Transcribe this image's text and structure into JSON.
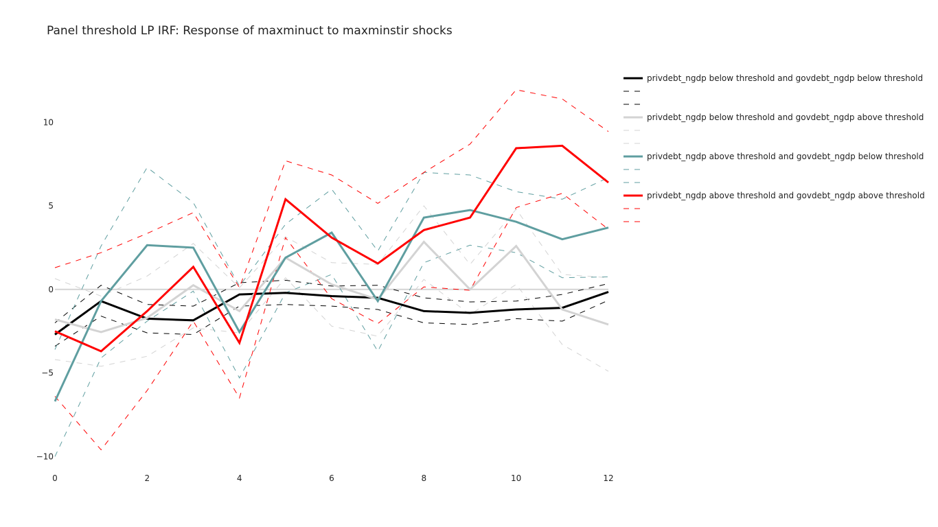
{
  "chart_data": {
    "type": "line",
    "title": "Panel threshold LP IRF: Response of maxminuct to maxminstir shocks",
    "xlabel": "",
    "ylabel": "",
    "x": [
      0,
      1,
      2,
      3,
      4,
      5,
      6,
      7,
      8,
      9,
      10,
      11,
      12
    ],
    "xlim": [
      0,
      12
    ],
    "ylim": [
      -10.4,
      12.6
    ],
    "xticks": [
      0,
      2,
      4,
      6,
      8,
      10,
      12
    ],
    "yticks": [
      -10,
      -5,
      0,
      5,
      10
    ],
    "ytick_labels": [
      "−10",
      "−5",
      "0",
      "5",
      "10"
    ],
    "grid": false,
    "zero_line": true,
    "legend_position": "right",
    "series": [
      {
        "name": "privdebt_ngdp below threshold and govdebt_ngdp below threshold",
        "role": "estimate",
        "color": "#000000",
        "dash": "solid",
        "values": [
          -2.7,
          -0.7,
          -1.75,
          -1.85,
          -0.3,
          -0.2,
          -0.4,
          -0.5,
          -1.3,
          -1.4,
          -1.2,
          -1.1,
          -0.15
        ]
      },
      {
        "name": "",
        "role": "upper",
        "color": "#000000",
        "dash": "dashed",
        "values": [
          -2.0,
          0.25,
          -0.9,
          -1.0,
          0.4,
          0.55,
          0.2,
          0.25,
          -0.5,
          -0.75,
          -0.7,
          -0.3,
          0.35
        ]
      },
      {
        "name": "",
        "role": "lower",
        "color": "#000000",
        "dash": "dashed",
        "values": [
          -3.4,
          -1.6,
          -2.6,
          -2.7,
          -1.0,
          -0.9,
          -1.0,
          -1.2,
          -2.0,
          -2.1,
          -1.75,
          -1.9,
          -0.65
        ]
      },
      {
        "name": "privdebt_ngdp below threshold and govdebt_ngdp above threshold",
        "role": "estimate",
        "color": "#d3d3d3",
        "dash": "solid",
        "values": [
          -1.8,
          -2.55,
          -1.7,
          0.25,
          -1.3,
          1.9,
          0.3,
          -0.6,
          2.85,
          0.0,
          2.6,
          -1.2,
          -2.1
        ]
      },
      {
        "name": "",
        "role": "upper",
        "color": "#d3d3d3",
        "dash": "dashed",
        "values": [
          0.65,
          -0.4,
          0.8,
          2.75,
          0.1,
          3.15,
          1.6,
          1.5,
          5.0,
          1.5,
          4.8,
          0.9,
          0.7
        ]
      },
      {
        "name": "",
        "role": "lower",
        "color": "#d3d3d3",
        "dash": "dashed",
        "values": [
          -4.2,
          -4.6,
          -4.0,
          -2.3,
          -2.6,
          0.7,
          -2.2,
          -2.8,
          0.6,
          -1.5,
          0.3,
          -3.3,
          -4.9
        ]
      },
      {
        "name": "privdebt_ngdp above threshold and govdebt_ngdp below threshold",
        "role": "estimate",
        "color": "#5f9ea0",
        "dash": "solid",
        "values": [
          -6.7,
          -0.7,
          2.65,
          2.5,
          -2.55,
          1.9,
          3.4,
          -0.7,
          4.3,
          4.75,
          4.05,
          3.0,
          3.7
        ]
      },
      {
        "name": "",
        "role": "upper",
        "color": "#5f9ea0",
        "dash": "dashed",
        "values": [
          -3.6,
          2.6,
          7.3,
          5.2,
          0.2,
          3.9,
          6.0,
          2.3,
          7.0,
          6.85,
          5.85,
          5.4,
          6.7
        ]
      },
      {
        "name": "",
        "role": "lower",
        "color": "#5f9ea0",
        "dash": "dashed",
        "values": [
          -10.0,
          -4.1,
          -1.9,
          -0.1,
          -5.3,
          -0.2,
          0.9,
          -3.7,
          1.6,
          2.65,
          2.2,
          0.7,
          0.75
        ]
      },
      {
        "name": "privdebt_ngdp above threshold and govdebt_ngdp above threshold",
        "role": "estimate",
        "color": "#ff0000",
        "dash": "solid",
        "values": [
          -2.5,
          -3.7,
          -1.3,
          1.35,
          -3.2,
          5.4,
          3.1,
          1.55,
          3.55,
          4.3,
          8.45,
          8.6,
          6.4
        ]
      },
      {
        "name": "",
        "role": "upper",
        "color": "#ff0000",
        "dash": "dashed",
        "values": [
          1.3,
          2.2,
          3.35,
          4.6,
          0.1,
          7.7,
          6.85,
          5.15,
          7.0,
          8.7,
          11.95,
          11.4,
          9.45
        ]
      },
      {
        "name": "",
        "role": "lower",
        "color": "#ff0000",
        "dash": "dashed",
        "values": [
          -6.4,
          -9.6,
          -6.05,
          -1.9,
          -6.5,
          3.1,
          -0.55,
          -2.05,
          0.15,
          -0.05,
          4.9,
          5.75,
          3.6
        ]
      }
    ]
  }
}
